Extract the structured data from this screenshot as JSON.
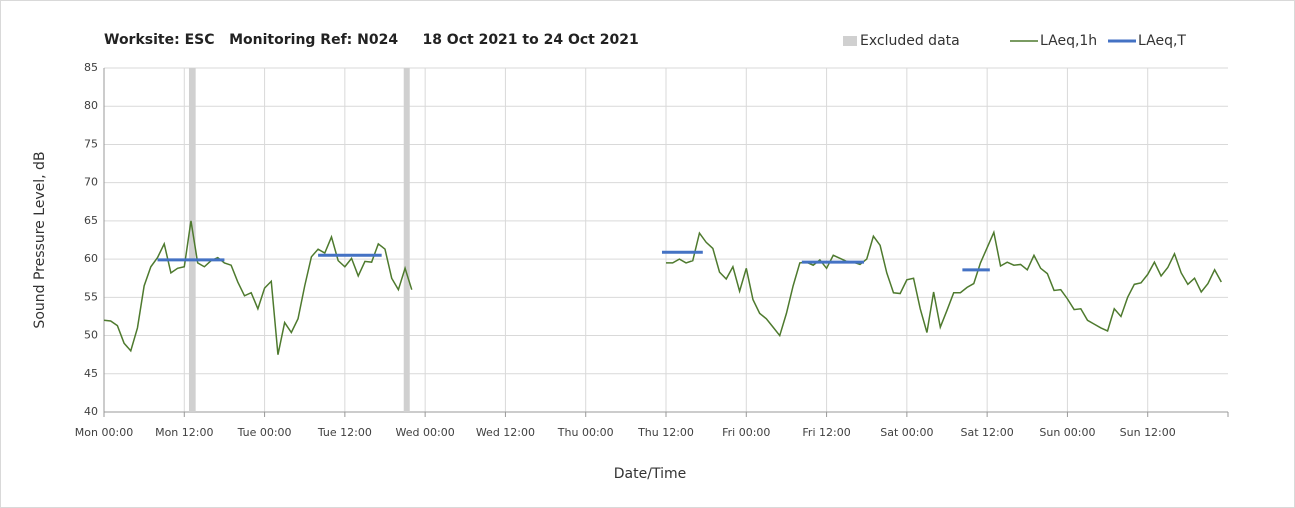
{
  "chart_data": {
    "type": "line",
    "title": "Worksite: ESC   Monitoring Ref: N024     18 Oct 2021 to 24 Oct 2021",
    "xlabel": "Date/Time",
    "ylabel": "Sound Pressure Level, dB",
    "xlim": [
      0,
      168
    ],
    "xticks": [
      {
        "value": 0,
        "label": "Mon 00:00"
      },
      {
        "value": 12,
        "label": "Mon 12:00"
      },
      {
        "value": 24,
        "label": "Tue 00:00"
      },
      {
        "value": 36,
        "label": "Tue 12:00"
      },
      {
        "value": 48,
        "label": "Wed 00:00"
      },
      {
        "value": 60,
        "label": "Wed 12:00"
      },
      {
        "value": 72,
        "label": "Thu 00:00"
      },
      {
        "value": 84,
        "label": "Thu 12:00"
      },
      {
        "value": 96,
        "label": "Fri 00:00"
      },
      {
        "value": 108,
        "label": "Fri 12:00"
      },
      {
        "value": 120,
        "label": "Sat 00:00"
      },
      {
        "value": 132,
        "label": "Sat 12:00"
      },
      {
        "value": 144,
        "label": "Sun 00:00"
      },
      {
        "value": 156,
        "label": "Sun 12:00"
      }
    ],
    "ylim": [
      40,
      85
    ],
    "yticks": [
      40,
      45,
      50,
      55,
      60,
      65,
      70,
      75,
      80,
      85
    ],
    "grid": true,
    "legend": "top-right",
    "excluded": {
      "name": "Excluded data",
      "color": "#d0d0d0",
      "ranges": [
        [
          12.7,
          13.7
        ],
        [
          44.8,
          45.7
        ]
      ]
    },
    "x": [
      0,
      1,
      2,
      3,
      4,
      5,
      6,
      7,
      8,
      9,
      10,
      11,
      12,
      13,
      14,
      15,
      16,
      17,
      18,
      19,
      20,
      21,
      22,
      23,
      24,
      25,
      26,
      27,
      28,
      29,
      30,
      31,
      32,
      33,
      34,
      35,
      36,
      37,
      38,
      39,
      40,
      41,
      42,
      43,
      44,
      45,
      46,
      47,
      84,
      85,
      86,
      87,
      88,
      89,
      90,
      91,
      92,
      93,
      94,
      95,
      96,
      97,
      98,
      99,
      100,
      101,
      102,
      103,
      104,
      105,
      106,
      107,
      108,
      109,
      110,
      111,
      112,
      113,
      114,
      115,
      116,
      117,
      118,
      119,
      120,
      121,
      122,
      123,
      124,
      125,
      126,
      127,
      128,
      129,
      130,
      131,
      132,
      133,
      134,
      135,
      136,
      137,
      138,
      139,
      140,
      141,
      142,
      143,
      144,
      145,
      146,
      147,
      148,
      149,
      150,
      151,
      152,
      153,
      154,
      155,
      156,
      157,
      158,
      159,
      160,
      161,
      162,
      163,
      164,
      165,
      166,
      167
    ],
    "series": [
      {
        "name": "LAeq,1h",
        "color": "#4e7a2e",
        "values": [
          52,
          51.9,
          51.3,
          49,
          48,
          51,
          56.5,
          59,
          60.2,
          62,
          58.2,
          58.8,
          59,
          65,
          59.5,
          59,
          59.8,
          60.2,
          59.5,
          59.2,
          57,
          55.2,
          55.6,
          53.5,
          56.2,
          57.1,
          47.5,
          51.7,
          50.4,
          52.2,
          56.5,
          60.3,
          61.3,
          60.8,
          62.9,
          59.8,
          59,
          60.1,
          57.8,
          59.7,
          59.6,
          62,
          61.3,
          57.5,
          56,
          58.8,
          56,
          null,
          59.5,
          59.5,
          60,
          59.5,
          59.8,
          63.4,
          62.2,
          61.4,
          58.3,
          57.4,
          59,
          55.8,
          58.8,
          54.7,
          52.9,
          52.2,
          51.1,
          50,
          52.9,
          56.5,
          59.5,
          59.6,
          59.2,
          59.9,
          58.8,
          60.5,
          60.1,
          59.7,
          59.6,
          59.3,
          60,
          63,
          61.8,
          58.2,
          55.6,
          55.5,
          57.3,
          57.5,
          53.5,
          50.4,
          55.7,
          51.1,
          53.3,
          55.6,
          55.6,
          56.3,
          56.8,
          59.5,
          61.5,
          63.5,
          59.1,
          59.6,
          59.2,
          59.3,
          58.6,
          60.5,
          58.8,
          58.1,
          55.9,
          56,
          54.8,
          53.4,
          53.5,
          52,
          51.5,
          51,
          50.6,
          53.5,
          52.5,
          55,
          56.7,
          56.9,
          58,
          59.6,
          57.8,
          58.9,
          60.7,
          58.2,
          56.7,
          57.5,
          55.7,
          56.8,
          58.6,
          57
        ]
      },
      {
        "name": "LAeq,T",
        "color": "#4472c4",
        "segments": [
          {
            "x": [
              8,
              18
            ],
            "value": 59.9
          },
          {
            "x": [
              32,
              41.5
            ],
            "value": 60.5
          },
          {
            "x": [
              83.4,
              89.5
            ],
            "value": 60.9
          },
          {
            "x": [
              104.3,
              113.6
            ],
            "value": 59.6
          },
          {
            "x": [
              128.3,
              132.4
            ],
            "value": 58.6
          }
        ]
      }
    ]
  }
}
